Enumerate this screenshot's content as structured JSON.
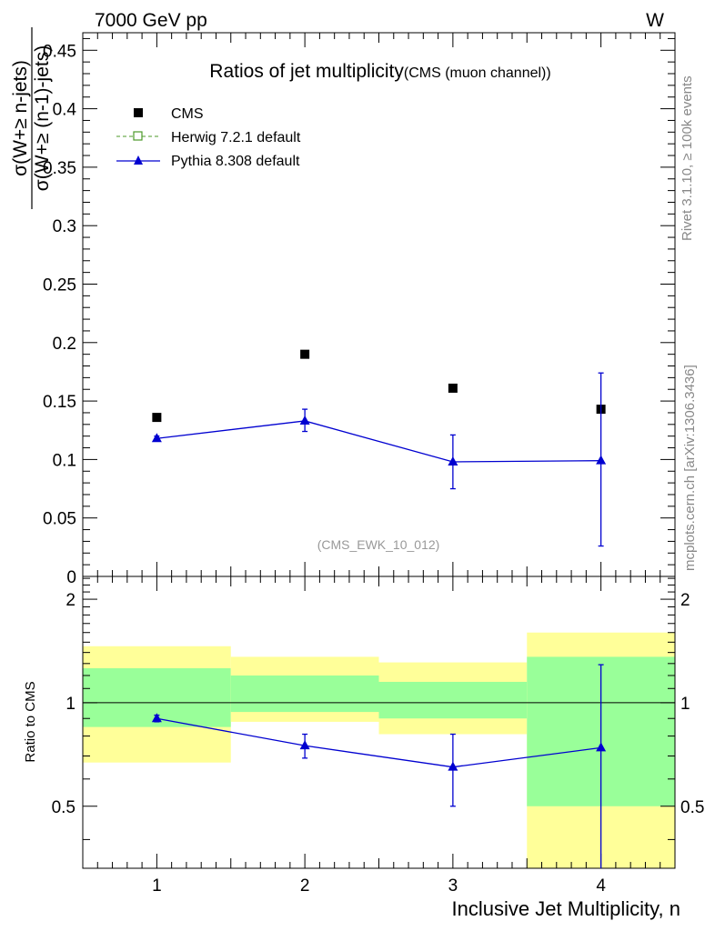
{
  "header": {
    "energy_label": "7000 GeV pp",
    "process_label": "W",
    "title_main": "Ratios of jet multiplicity",
    "title_sub": "(CMS (muon channel))",
    "analysis_id": "(CMS_EWK_10_012)",
    "rivet_label": "Rivet 3.1.10, ≥ 100k events",
    "mcplots_label": "mcplots.cern.ch [arXiv:1306.3436]"
  },
  "chart_data": [
    {
      "type": "scatter",
      "title": "Ratios of jet multiplicity",
      "xlabel": "Inclusive Jet Multiplicity, n",
      "ylabel_numerator": "σ(W+≥ n-jets)",
      "ylabel_denominator": "σ(W+≥ (n-1)-jets)",
      "xlim": [
        0.5,
        4.5
      ],
      "ylim": [
        0,
        0.465
      ],
      "yticks": [
        0,
        0.05,
        0.1,
        0.15,
        0.2,
        0.25,
        0.3,
        0.35,
        0.4,
        0.45
      ],
      "ytick_labels": [
        "0",
        "0.05",
        "0.1",
        "0.15",
        "0.2",
        "0.25",
        "0.3",
        "0.35",
        "0.4",
        "0.45"
      ],
      "xticks": [
        1,
        2,
        3,
        4
      ],
      "xtick_labels": [
        "1",
        "2",
        "3",
        "4"
      ],
      "legend_position": "top-left",
      "series": [
        {
          "name": "CMS",
          "marker": "square",
          "color": "#000000",
          "x": [
            1,
            2,
            3,
            4
          ],
          "y": [
            0.136,
            0.19,
            0.161,
            0.143
          ]
        },
        {
          "name": "Herwig 7.2.1 default",
          "marker": "open-square",
          "line_style": "dashed",
          "color": "#4c9a2a",
          "x": [],
          "y": []
        },
        {
          "name": "Pythia 8.308 default",
          "marker": "triangle",
          "color": "#0000d0",
          "x": [
            1,
            2,
            3,
            4
          ],
          "y": [
            0.118,
            0.133,
            0.098,
            0.099
          ],
          "yerr_low": [
            0.002,
            0.009,
            0.023,
            0.073
          ],
          "yerr_high": [
            0.002,
            0.01,
            0.023,
            0.075
          ]
        }
      ]
    },
    {
      "type": "scatter",
      "ylabel": "Ratio to CMS",
      "xlim": [
        0.5,
        4.5
      ],
      "ylim": [
        0.33,
        2.33
      ],
      "yscale": "log",
      "yticks": [
        0.5,
        1,
        2
      ],
      "ytick_labels": [
        "0.5",
        "1",
        "2"
      ],
      "reference_line": 1,
      "bands": [
        {
          "x": [
            0.5,
            1.5
          ],
          "inner": [
            0.85,
            1.26
          ],
          "outer": [
            0.67,
            1.46
          ]
        },
        {
          "x": [
            1.5,
            2.5
          ],
          "inner": [
            0.94,
            1.2
          ],
          "outer": [
            0.88,
            1.36
          ]
        },
        {
          "x": [
            2.5,
            3.5
          ],
          "inner": [
            0.9,
            1.15
          ],
          "outer": [
            0.81,
            1.31
          ]
        },
        {
          "x": [
            3.5,
            4.5
          ],
          "inner": [
            0.5,
            1.36
          ],
          "outer": [
            0.33,
            1.6
          ]
        }
      ],
      "band_colors": {
        "inner": "#99ff99",
        "outer": "#ffff99"
      },
      "series": [
        {
          "name": "Pythia 8.308 default",
          "color": "#0000d0",
          "x": [
            1,
            2,
            3,
            4
          ],
          "y": [
            0.9,
            0.75,
            0.65,
            0.74
          ],
          "yerr_low": [
            0.02,
            0.06,
            0.15,
            0.41
          ],
          "yerr_high": [
            0.02,
            0.06,
            0.16,
            0.55
          ]
        }
      ]
    }
  ]
}
